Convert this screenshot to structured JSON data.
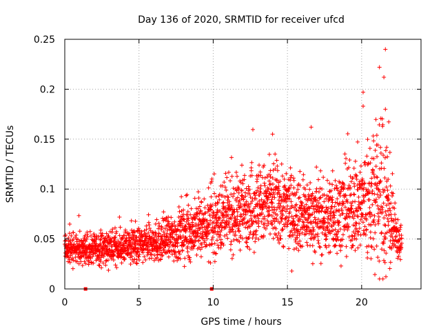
{
  "chart_data": {
    "type": "scatter",
    "title": "Day 136 of 2020, SRMTID for receiver ufcd",
    "xlabel": "GPS time / hours",
    "ylabel": "SRMTID / TECUs",
    "xlim": [
      0,
      24
    ],
    "ylim": [
      0,
      0.25
    ],
    "x_ticks": [
      0,
      5,
      10,
      15,
      20
    ],
    "x_tick_labels": [
      "0",
      "5",
      "10",
      "15",
      "20"
    ],
    "y_ticks": [
      0,
      0.05,
      0.1,
      0.15,
      0.2,
      0.25
    ],
    "y_tick_labels": [
      "0",
      "0.05",
      "0.1",
      "0.15",
      "0.2",
      "0.25"
    ],
    "grid": true,
    "marker": "+",
    "series": [
      {
        "name": "SRMTID",
        "color": "#ff0000",
        "envelope_x": [
          0,
          2,
          4,
          6,
          8,
          10,
          12,
          14,
          16,
          17.5,
          19,
          20,
          21,
          21.6,
          22.2,
          22.7
        ],
        "envelope_mean": [
          0.04,
          0.04,
          0.042,
          0.045,
          0.055,
          0.065,
          0.08,
          0.085,
          0.075,
          0.07,
          0.08,
          0.085,
          0.09,
          0.09,
          0.055,
          0.045
        ],
        "envelope_spread": [
          0.012,
          0.012,
          0.013,
          0.015,
          0.022,
          0.025,
          0.03,
          0.035,
          0.03,
          0.03,
          0.035,
          0.045,
          0.06,
          0.07,
          0.02,
          0.012
        ],
        "min_value": 0.01,
        "peak_points": [
          {
            "x": 21.6,
            "y": 0.24
          },
          {
            "x": 21.2,
            "y": 0.222
          },
          {
            "x": 21.5,
            "y": 0.212
          },
          {
            "x": 20.1,
            "y": 0.197
          },
          {
            "x": 20.1,
            "y": 0.183
          },
          {
            "x": 21.6,
            "y": 0.18
          },
          {
            "x": 14.0,
            "y": 0.155
          },
          {
            "x": 16.6,
            "y": 0.162
          }
        ],
        "zero_points": [
          {
            "x": 1.4,
            "y": 0
          },
          {
            "x": 9.9,
            "y": 0
          }
        ]
      }
    ]
  }
}
